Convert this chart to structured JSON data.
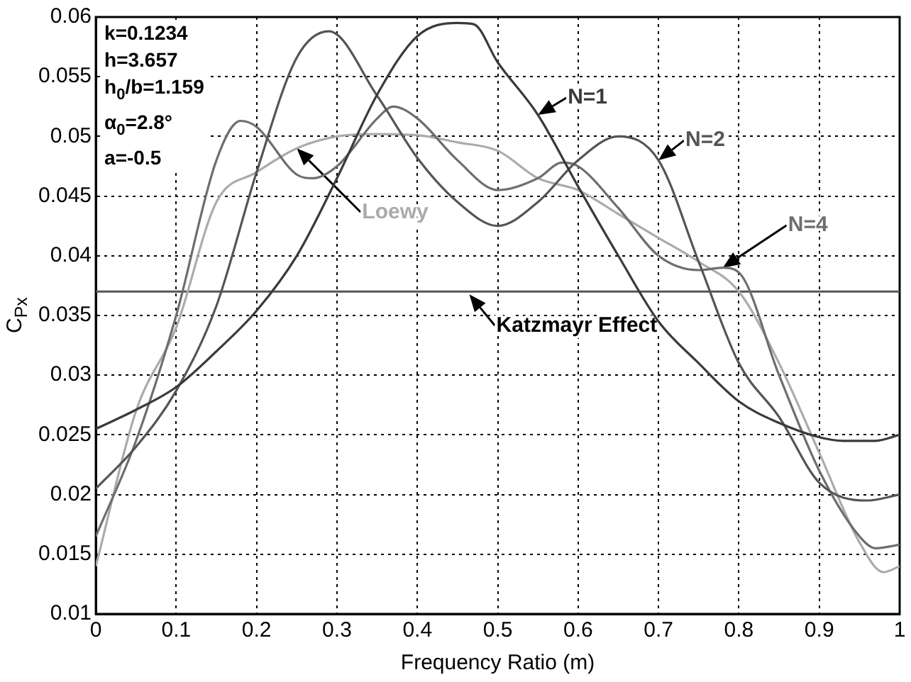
{
  "chart_data": {
    "type": "line",
    "xlabel": "Frequency Ratio (m)",
    "ylabel": "C$_{Px}$",
    "xlim": [
      0,
      1
    ],
    "xticks": [
      0,
      0.1,
      0.2,
      0.3,
      0.4,
      0.5,
      0.6,
      0.7,
      0.8,
      0.9,
      1
    ],
    "ylim": [
      0.01,
      0.06
    ],
    "yticks": [
      0.01,
      0.015,
      0.02,
      0.025,
      0.03,
      0.035,
      0.04,
      0.045,
      0.05,
      0.055,
      0.06
    ],
    "grid": true,
    "legend": false,
    "marker": "none",
    "line_style": "solid",
    "series": [
      {
        "name": "N=1",
        "color": "#3a3a3a",
        "x": [
          0,
          0.05,
          0.1,
          0.15,
          0.2,
          0.25,
          0.3,
          0.35,
          0.4,
          0.45,
          0.47,
          0.5,
          0.55,
          0.6,
          0.65,
          0.7,
          0.75,
          0.8,
          0.85,
          0.9,
          0.93,
          0.97,
          1
        ],
        "values": [
          0.0255,
          0.0271,
          0.029,
          0.032,
          0.0354,
          0.04,
          0.0465,
          0.0535,
          0.0584,
          0.0595,
          0.0594,
          0.0562,
          0.0518,
          0.0458,
          0.04,
          0.0345,
          0.031,
          0.0278,
          0.026,
          0.0248,
          0.0245,
          0.0245,
          0.025
        ]
      },
      {
        "name": "N=2",
        "color": "#555555",
        "x": [
          0,
          0.05,
          0.1,
          0.15,
          0.2,
          0.25,
          0.29,
          0.35,
          0.4,
          0.45,
          0.5,
          0.55,
          0.6,
          0.65,
          0.7,
          0.75,
          0.8,
          0.85,
          0.9,
          0.96,
          1
        ],
        "values": [
          0.0205,
          0.024,
          0.0287,
          0.0358,
          0.047,
          0.0566,
          0.0588,
          0.0534,
          0.0482,
          0.0445,
          0.0425,
          0.0445,
          0.048,
          0.05,
          0.048,
          0.0395,
          0.031,
          0.0265,
          0.021,
          0.0195,
          0.02
        ]
      },
      {
        "name": "N=4",
        "color": "#6e6e6e",
        "x": [
          0,
          0.05,
          0.1,
          0.15,
          0.18,
          0.2,
          0.25,
          0.27,
          0.3,
          0.35,
          0.37,
          0.4,
          0.45,
          0.5,
          0.55,
          0.58,
          0.6,
          0.65,
          0.7,
          0.75,
          0.78,
          0.8,
          0.85,
          0.9,
          0.95,
          0.97,
          1
        ],
        "values": [
          0.0165,
          0.0245,
          0.035,
          0.048,
          0.0513,
          0.0508,
          0.0468,
          0.0465,
          0.0475,
          0.0515,
          0.0525,
          0.0515,
          0.048,
          0.0455,
          0.0465,
          0.0478,
          0.0475,
          0.044,
          0.04,
          0.0388,
          0.039,
          0.0386,
          0.03,
          0.022,
          0.0165,
          0.0155,
          0.0158
        ]
      },
      {
        "name": "Loewy",
        "color": "#ababab",
        "x": [
          0,
          0.05,
          0.1,
          0.15,
          0.2,
          0.25,
          0.3,
          0.35,
          0.4,
          0.45,
          0.5,
          0.55,
          0.6,
          0.65,
          0.7,
          0.75,
          0.8,
          0.85,
          0.9,
          0.95,
          0.98,
          1
        ],
        "values": [
          0.014,
          0.027,
          0.034,
          0.0445,
          0.047,
          0.049,
          0.05,
          0.0502,
          0.0501,
          0.0495,
          0.0488,
          0.0465,
          0.0455,
          0.0435,
          0.0415,
          0.0395,
          0.037,
          0.031,
          0.0235,
          0.016,
          0.0135,
          0.014
        ]
      }
    ],
    "ref_lines": [
      {
        "axis": "y",
        "value": 0.037,
        "label": "Katzmayr Effect",
        "color": "#555555"
      }
    ],
    "annotations": [
      "k=0.1234",
      "h=3.657",
      "h$_{0}$/b=1.159",
      "α$_{0}$=2.8°",
      "a=-0.5"
    ]
  }
}
